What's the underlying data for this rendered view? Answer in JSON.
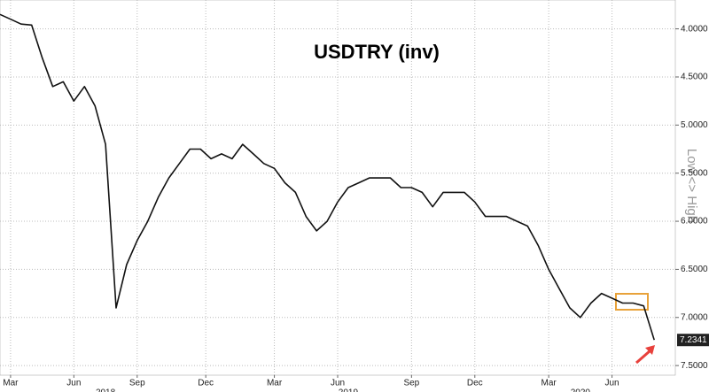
{
  "chart_data": {
    "type": "line",
    "title": "USDTRY (inv)",
    "y_axis_label": "Low <> High",
    "inverted_y": true,
    "grid": true,
    "color": "#111111",
    "x": [
      0,
      1,
      2,
      3,
      4,
      5,
      6,
      7,
      8,
      9,
      10,
      11,
      12,
      13,
      14,
      15,
      16,
      17,
      18,
      19,
      20,
      21,
      22,
      23,
      24,
      25,
      26,
      27,
      28,
      29,
      30,
      31,
      32,
      33,
      34,
      35,
      36,
      37,
      38,
      39,
      40,
      41,
      42,
      43,
      44,
      45,
      46,
      47,
      48,
      49,
      50,
      51,
      52,
      53,
      54,
      55,
      56,
      57,
      58,
      59,
      60,
      61,
      62
    ],
    "values": [
      3.85,
      3.9,
      3.95,
      3.96,
      4.3,
      4.6,
      4.55,
      4.75,
      4.6,
      4.8,
      5.2,
      6.9,
      6.45,
      6.2,
      6.0,
      5.75,
      5.55,
      5.4,
      5.25,
      5.25,
      5.35,
      5.3,
      5.35,
      5.2,
      5.3,
      5.4,
      5.45,
      5.6,
      5.7,
      5.95,
      6.1,
      6.0,
      5.8,
      5.65,
      5.6,
      5.55,
      5.55,
      5.55,
      5.65,
      5.65,
      5.7,
      5.85,
      5.7,
      5.7,
      5.7,
      5.8,
      5.95,
      5.95,
      5.95,
      6.0,
      6.05,
      6.25,
      6.5,
      6.7,
      6.9,
      7.0,
      6.85,
      6.75,
      6.8,
      6.85,
      6.85,
      6.88,
      7.2341
    ],
    "last_price": 7.2341,
    "xlim": [
      0,
      64
    ],
    "ylim": [
      3.7,
      7.6
    ],
    "yticks": [
      {
        "value": 4,
        "label": "4.0000"
      },
      {
        "value": 4.5,
        "label": "4.5000"
      },
      {
        "value": 5,
        "label": "5.0000"
      },
      {
        "value": 5.5,
        "label": "5.5000"
      },
      {
        "value": 6,
        "label": "6.0000"
      },
      {
        "value": 6.5,
        "label": "6.5000"
      },
      {
        "value": 7,
        "label": "7.0000"
      },
      {
        "value": 7.5,
        "label": "7.5000"
      }
    ],
    "xticks": [
      {
        "value": 1,
        "label": "Mar"
      },
      {
        "value": 7,
        "label": "Jun"
      },
      {
        "value": 13,
        "label": "Sep"
      },
      {
        "value": 19.5,
        "label": "Dec"
      },
      {
        "value": 26,
        "label": "Mar"
      },
      {
        "value": 32,
        "label": "Jun"
      },
      {
        "value": 39,
        "label": "Sep"
      },
      {
        "value": 45,
        "label": "Dec"
      },
      {
        "value": 52,
        "label": "Mar"
      },
      {
        "value": 58,
        "label": "Jun"
      }
    ],
    "year_ticks": [
      {
        "value": 10,
        "label": "2018"
      },
      {
        "value": 33,
        "label": "2019"
      },
      {
        "value": 55,
        "label": "2020"
      }
    ]
  }
}
